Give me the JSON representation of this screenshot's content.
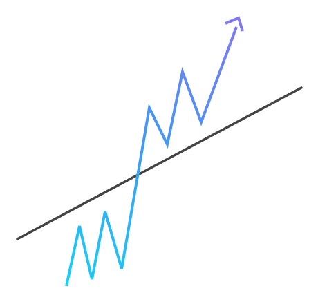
{
  "illustration": {
    "description_icon": "breakout-trend-icon",
    "colors": {
      "trendline": "#444444",
      "gradient_start": "#15D1F7",
      "gradient_mid": "#3E9BF6",
      "gradient_end": "#8277F5"
    }
  }
}
